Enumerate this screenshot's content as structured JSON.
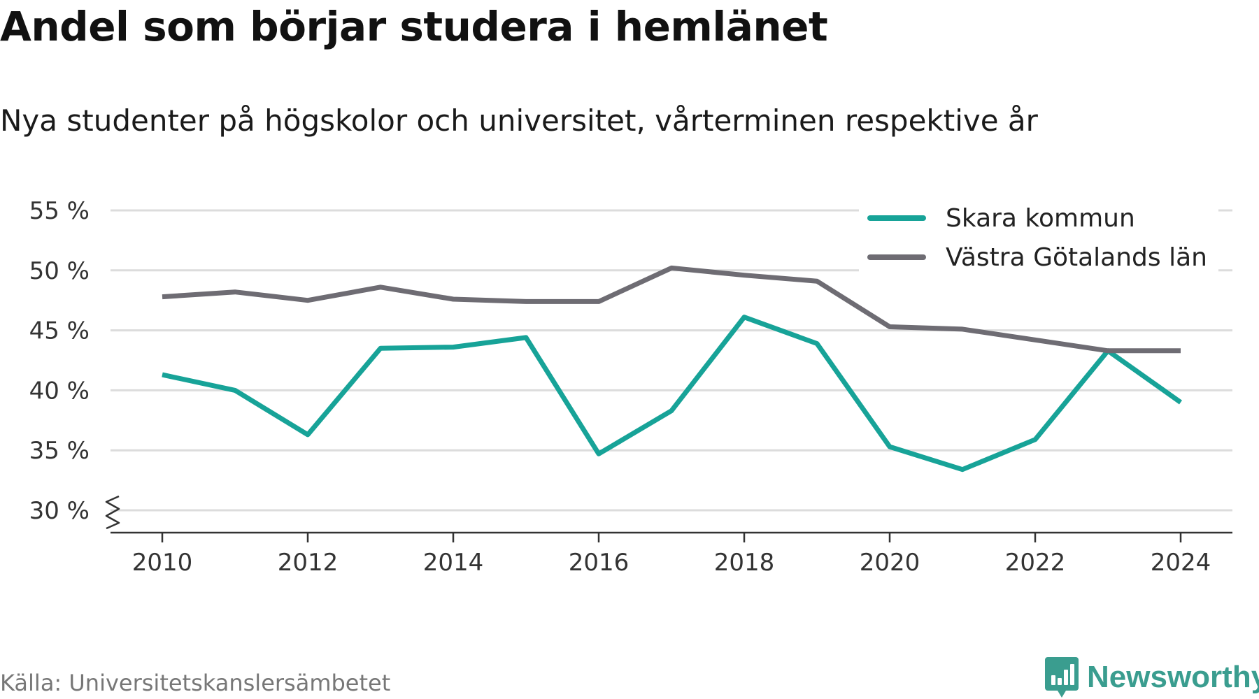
{
  "header": {
    "title": "Andel som börjar studera i hemlänet",
    "subtitle": "Nya studenter på högskolor och universitet, vårterminen respektive år"
  },
  "footer": {
    "source": "Källa: Universitetskanslersämbetet",
    "brand": "Newsworthy",
    "brand_icon": "bar-chart-icon",
    "brand_color": "#3a9d8f"
  },
  "chart_data": {
    "type": "line",
    "title": "Andel som börjar studera i hemlänet",
    "subtitle": "Nya studenter på högskolor och universitet, vårterminen respektive år",
    "xlabel": "",
    "ylabel": "",
    "x": [
      2010,
      2011,
      2012,
      2013,
      2014,
      2015,
      2016,
      2017,
      2018,
      2019,
      2020,
      2021,
      2022,
      2023,
      2024
    ],
    "x_tick_labels": [
      "2010",
      "2012",
      "2014",
      "2016",
      "2018",
      "2020",
      "2022",
      "2024"
    ],
    "y_tick_labels": [
      "30 %",
      "35 %",
      "40 %",
      "45 %",
      "50 %",
      "55 %"
    ],
    "ylim": [
      30,
      55
    ],
    "y_axis_break": true,
    "grid": "horizontal",
    "legend_position": "top-right",
    "series": [
      {
        "name": "Skara kommun",
        "color": "#17a398",
        "values": [
          41.3,
          40.0,
          36.3,
          43.5,
          43.6,
          44.4,
          34.7,
          38.3,
          46.1,
          43.9,
          35.3,
          33.4,
          35.9,
          43.3,
          39.0
        ]
      },
      {
        "name": "Västra Götalands län",
        "color": "#6e6c73",
        "values": [
          47.8,
          48.2,
          47.5,
          48.6,
          47.6,
          47.4,
          47.4,
          50.2,
          49.6,
          49.1,
          45.3,
          45.1,
          44.2,
          43.3,
          43.3
        ]
      }
    ]
  }
}
